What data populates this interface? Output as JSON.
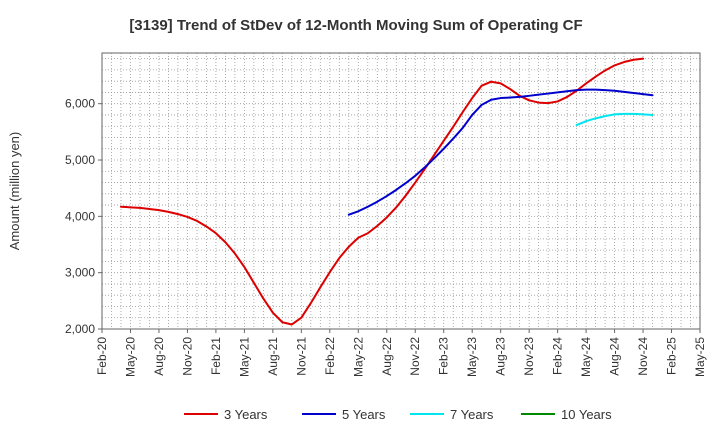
{
  "chart_data": {
    "type": "line",
    "title": "[3139]  Trend of StDev of 12-Month Moving Sum of Operating CF",
    "ylabel": "Amount (million yen)",
    "xlabel": "",
    "ylim": [
      2000,
      6900
    ],
    "yticks": [
      2000,
      3000,
      4000,
      5000,
      6000
    ],
    "ytick_labels": [
      "2,000",
      "3,000",
      "4,000",
      "5,000",
      "6,000"
    ],
    "xlim": [
      "2020-02",
      "2025-05"
    ],
    "xtick_labels": [
      "Feb-20",
      "May-20",
      "Aug-20",
      "Nov-20",
      "Feb-21",
      "May-21",
      "Aug-21",
      "Nov-21",
      "Feb-22",
      "May-22",
      "Aug-22",
      "Nov-22",
      "Feb-23",
      "May-23",
      "Aug-23",
      "Nov-23",
      "Feb-24",
      "May-24",
      "Aug-24",
      "Nov-24",
      "Feb-25",
      "May-25"
    ],
    "grid": true,
    "legend_position": "bottom",
    "series": [
      {
        "name": "3 Years",
        "color": "#dd0000",
        "points": [
          [
            "2020-04",
            4170
          ],
          [
            "2020-05",
            4160
          ],
          [
            "2020-06",
            4150
          ],
          [
            "2020-07",
            4130
          ],
          [
            "2020-08",
            4110
          ],
          [
            "2020-09",
            4080
          ],
          [
            "2020-10",
            4040
          ],
          [
            "2020-11",
            3990
          ],
          [
            "2020-12",
            3920
          ],
          [
            "2021-01",
            3820
          ],
          [
            "2021-02",
            3700
          ],
          [
            "2021-03",
            3540
          ],
          [
            "2021-04",
            3340
          ],
          [
            "2021-05",
            3100
          ],
          [
            "2021-06",
            2820
          ],
          [
            "2021-07",
            2540
          ],
          [
            "2021-08",
            2290
          ],
          [
            "2021-09",
            2120
          ],
          [
            "2021-10",
            2080
          ],
          [
            "2021-11",
            2200
          ],
          [
            "2021-12",
            2460
          ],
          [
            "2022-01",
            2740
          ],
          [
            "2022-02",
            3010
          ],
          [
            "2022-03",
            3260
          ],
          [
            "2022-04",
            3460
          ],
          [
            "2022-05",
            3620
          ],
          [
            "2022-06",
            3700
          ],
          [
            "2022-07",
            3830
          ],
          [
            "2022-08",
            3980
          ],
          [
            "2022-09",
            4160
          ],
          [
            "2022-10",
            4370
          ],
          [
            "2022-11",
            4600
          ],
          [
            "2022-12",
            4840
          ],
          [
            "2023-01",
            5090
          ],
          [
            "2023-02",
            5340
          ],
          [
            "2023-03",
            5590
          ],
          [
            "2023-04",
            5850
          ],
          [
            "2023-05",
            6100
          ],
          [
            "2023-06",
            6320
          ],
          [
            "2023-07",
            6390
          ],
          [
            "2023-08",
            6360
          ],
          [
            "2023-09",
            6260
          ],
          [
            "2023-10",
            6140
          ],
          [
            "2023-11",
            6060
          ],
          [
            "2023-12",
            6020
          ],
          [
            "2024-01",
            6010
          ],
          [
            "2024-02",
            6040
          ],
          [
            "2024-03",
            6120
          ],
          [
            "2024-04",
            6230
          ],
          [
            "2024-05",
            6360
          ],
          [
            "2024-06",
            6480
          ],
          [
            "2024-07",
            6590
          ],
          [
            "2024-08",
            6680
          ],
          [
            "2024-09",
            6740
          ],
          [
            "2024-10",
            6780
          ],
          [
            "2024-11",
            6800
          ]
        ]
      },
      {
        "name": "5 Years",
        "color": "#0000cc",
        "points": [
          [
            "2022-04",
            4030
          ],
          [
            "2022-05",
            4090
          ],
          [
            "2022-06",
            4170
          ],
          [
            "2022-07",
            4260
          ],
          [
            "2022-08",
            4360
          ],
          [
            "2022-09",
            4470
          ],
          [
            "2022-10",
            4590
          ],
          [
            "2022-11",
            4720
          ],
          [
            "2022-12",
            4870
          ],
          [
            "2023-01",
            5030
          ],
          [
            "2023-02",
            5200
          ],
          [
            "2023-03",
            5380
          ],
          [
            "2023-04",
            5570
          ],
          [
            "2023-05",
            5800
          ],
          [
            "2023-06",
            5980
          ],
          [
            "2023-07",
            6070
          ],
          [
            "2023-08",
            6100
          ],
          [
            "2023-09",
            6110
          ],
          [
            "2023-10",
            6120
          ],
          [
            "2023-11",
            6140
          ],
          [
            "2023-12",
            6160
          ],
          [
            "2024-01",
            6180
          ],
          [
            "2024-02",
            6200
          ],
          [
            "2024-03",
            6220
          ],
          [
            "2024-04",
            6240
          ],
          [
            "2024-05",
            6250
          ],
          [
            "2024-06",
            6250
          ],
          [
            "2024-07",
            6240
          ],
          [
            "2024-08",
            6230
          ],
          [
            "2024-09",
            6210
          ],
          [
            "2024-10",
            6190
          ],
          [
            "2024-11",
            6170
          ],
          [
            "2024-12",
            6150
          ]
        ]
      },
      {
        "name": "7 Years",
        "color": "#00e5ee",
        "points": [
          [
            "2024-04",
            5620
          ],
          [
            "2024-05",
            5690
          ],
          [
            "2024-06",
            5740
          ],
          [
            "2024-07",
            5780
          ],
          [
            "2024-08",
            5810
          ],
          [
            "2024-09",
            5820
          ],
          [
            "2024-10",
            5820
          ],
          [
            "2024-11",
            5810
          ],
          [
            "2024-12",
            5800
          ]
        ]
      },
      {
        "name": "10 Years",
        "color": "#008800",
        "points": []
      }
    ]
  }
}
